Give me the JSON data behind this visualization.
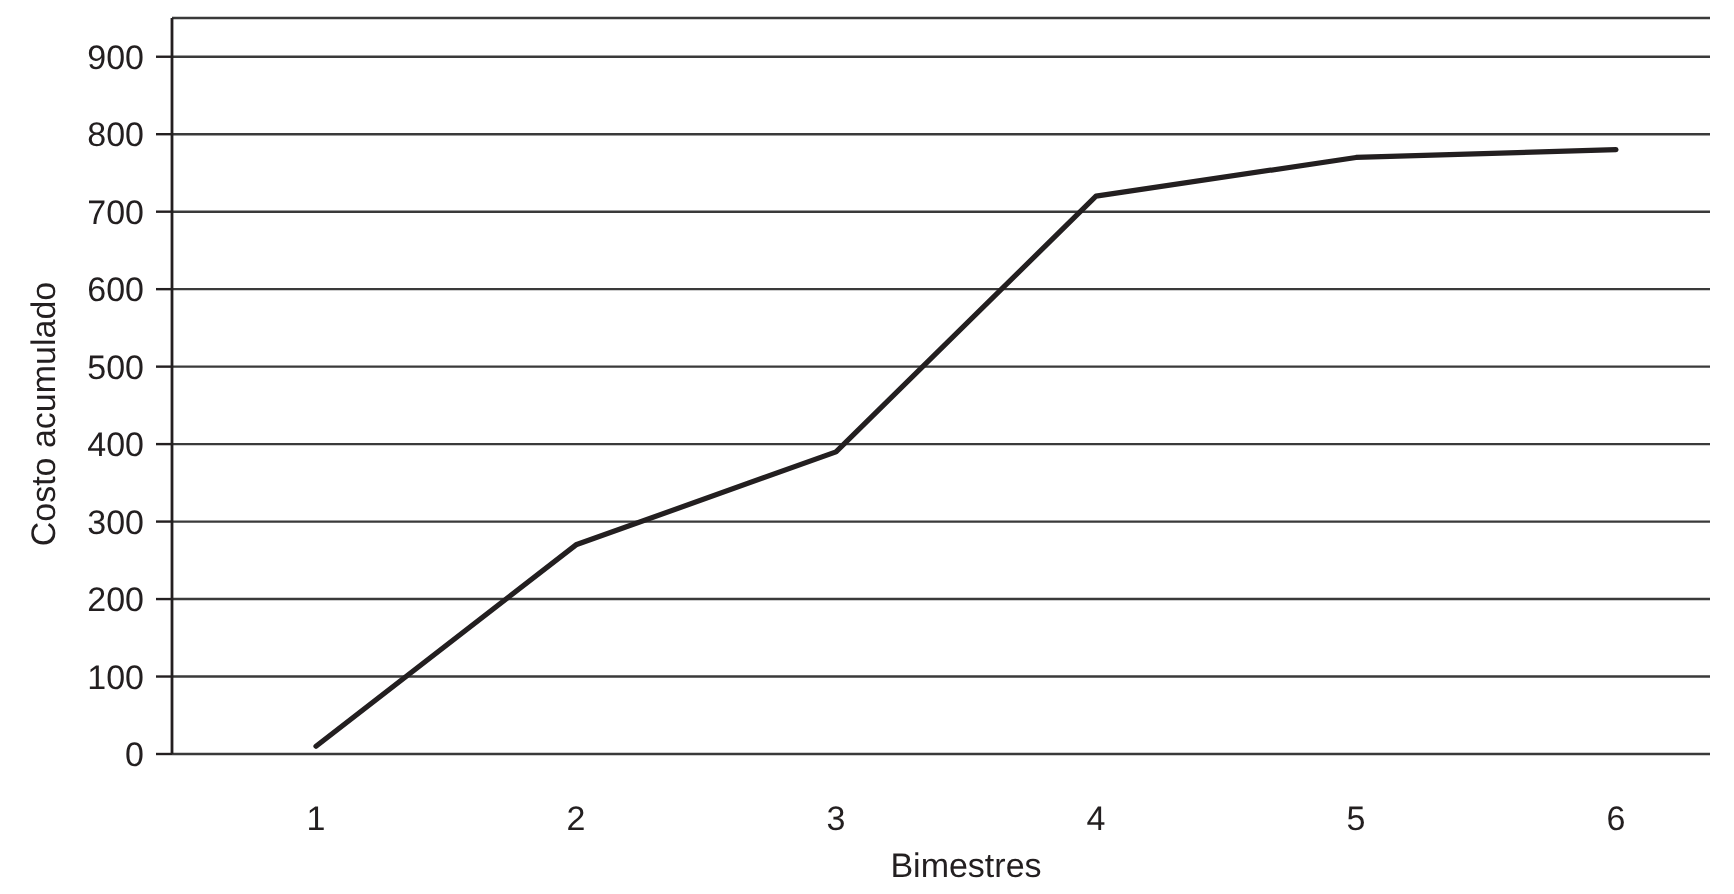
{
  "chart_data": {
    "type": "line",
    "xlabel": "Bimestres",
    "ylabel": "Costo acumulado",
    "categories": [
      "1",
      "2",
      "3",
      "4",
      "5",
      "6"
    ],
    "series": [
      {
        "color": "#231f20",
        "values": [
          10,
          270,
          390,
          720,
          770,
          780
        ]
      }
    ],
    "ylim": [
      0,
      950
    ],
    "yticks": [
      0,
      100,
      200,
      300,
      400,
      500,
      600,
      700,
      800,
      900
    ],
    "grid": "y",
    "marker": "none",
    "line_style": "solid"
  }
}
